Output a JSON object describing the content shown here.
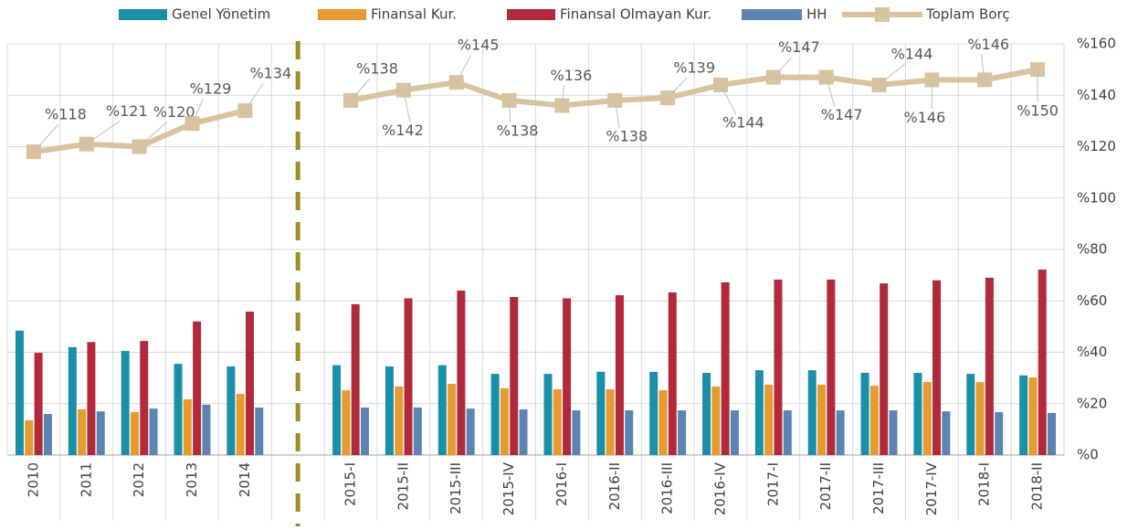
{
  "chart_data": {
    "type": "bar",
    "categories": [
      "2010",
      "2011",
      "2012",
      "2013",
      "2014",
      null,
      "2015-I",
      "2015-II",
      "2015-III",
      "2015-IV",
      "2016-I",
      "2016-II",
      "2016-III",
      "2016-IV",
      "2017-I",
      "2017-II",
      "2017-III",
      "2017-IV",
      "2018-I",
      "2018-II"
    ],
    "series": [
      {
        "name": "Genel Yönetim",
        "color": "#1a8fa8",
        "values": [
          48.4,
          42,
          40.5,
          35.5,
          34.5,
          null,
          35,
          34.5,
          35,
          31.6,
          31.6,
          32.4,
          32.4,
          32,
          33,
          33,
          32,
          32,
          31.6,
          31
        ]
      },
      {
        "name": "Finansal Kur.",
        "color": "#e59b2f",
        "values": [
          13.5,
          17.8,
          16.7,
          21.7,
          23.8,
          null,
          25.2,
          26.7,
          27.7,
          26,
          25.6,
          25.6,
          25.2,
          26.7,
          27.4,
          27.4,
          27,
          28.4,
          28.4,
          30.2
        ]
      },
      {
        "name": "Finansal Olmayan Kur.",
        "color": "#b02a3c",
        "values": [
          39.8,
          44,
          44.4,
          52,
          55.8,
          null,
          58.7,
          61,
          64,
          61.5,
          61,
          62.2,
          63.3,
          67.2,
          68.3,
          68.3,
          66.8,
          68,
          69,
          72.2
        ]
      },
      {
        "name": "HH",
        "color": "#5b85b0",
        "values": [
          16,
          17,
          18.1,
          19.6,
          18.5,
          null,
          18.5,
          18.5,
          18.1,
          17.8,
          17.4,
          17.4,
          17.4,
          17.4,
          17.4,
          17.4,
          17.4,
          17,
          16.7,
          16.4
        ]
      },
      {
        "name": "Toplam Borç",
        "color": "#d8c3a0",
        "type": "line",
        "values": [
          118,
          121,
          120,
          129,
          134,
          null,
          138,
          142,
          145,
          138,
          136,
          138,
          139,
          144,
          147,
          147,
          144,
          146,
          146,
          150
        ],
        "value_labels": [
          "%118",
          "%121",
          "%120",
          "%129",
          "%134",
          null,
          "%138",
          "%142",
          "%145",
          "%138",
          "%136",
          "%138",
          "%139",
          "%144",
          "%147",
          "%147",
          "%144",
          "%146",
          "%146",
          "%150"
        ]
      }
    ],
    "ylim": [
      0,
      160
    ],
    "yticks": [
      {
        "value": 0,
        "label": "%0"
      },
      {
        "value": 20,
        "label": "%20"
      },
      {
        "value": 40,
        "label": "%40"
      },
      {
        "value": 60,
        "label": "%60"
      },
      {
        "value": 80,
        "label": "%80"
      },
      {
        "value": 100,
        "label": "%100"
      },
      {
        "value": 120,
        "label": "%120"
      },
      {
        "value": 140,
        "label": "%140"
      },
      {
        "value": 160,
        "label": "%160"
      }
    ],
    "grid": true
  }
}
